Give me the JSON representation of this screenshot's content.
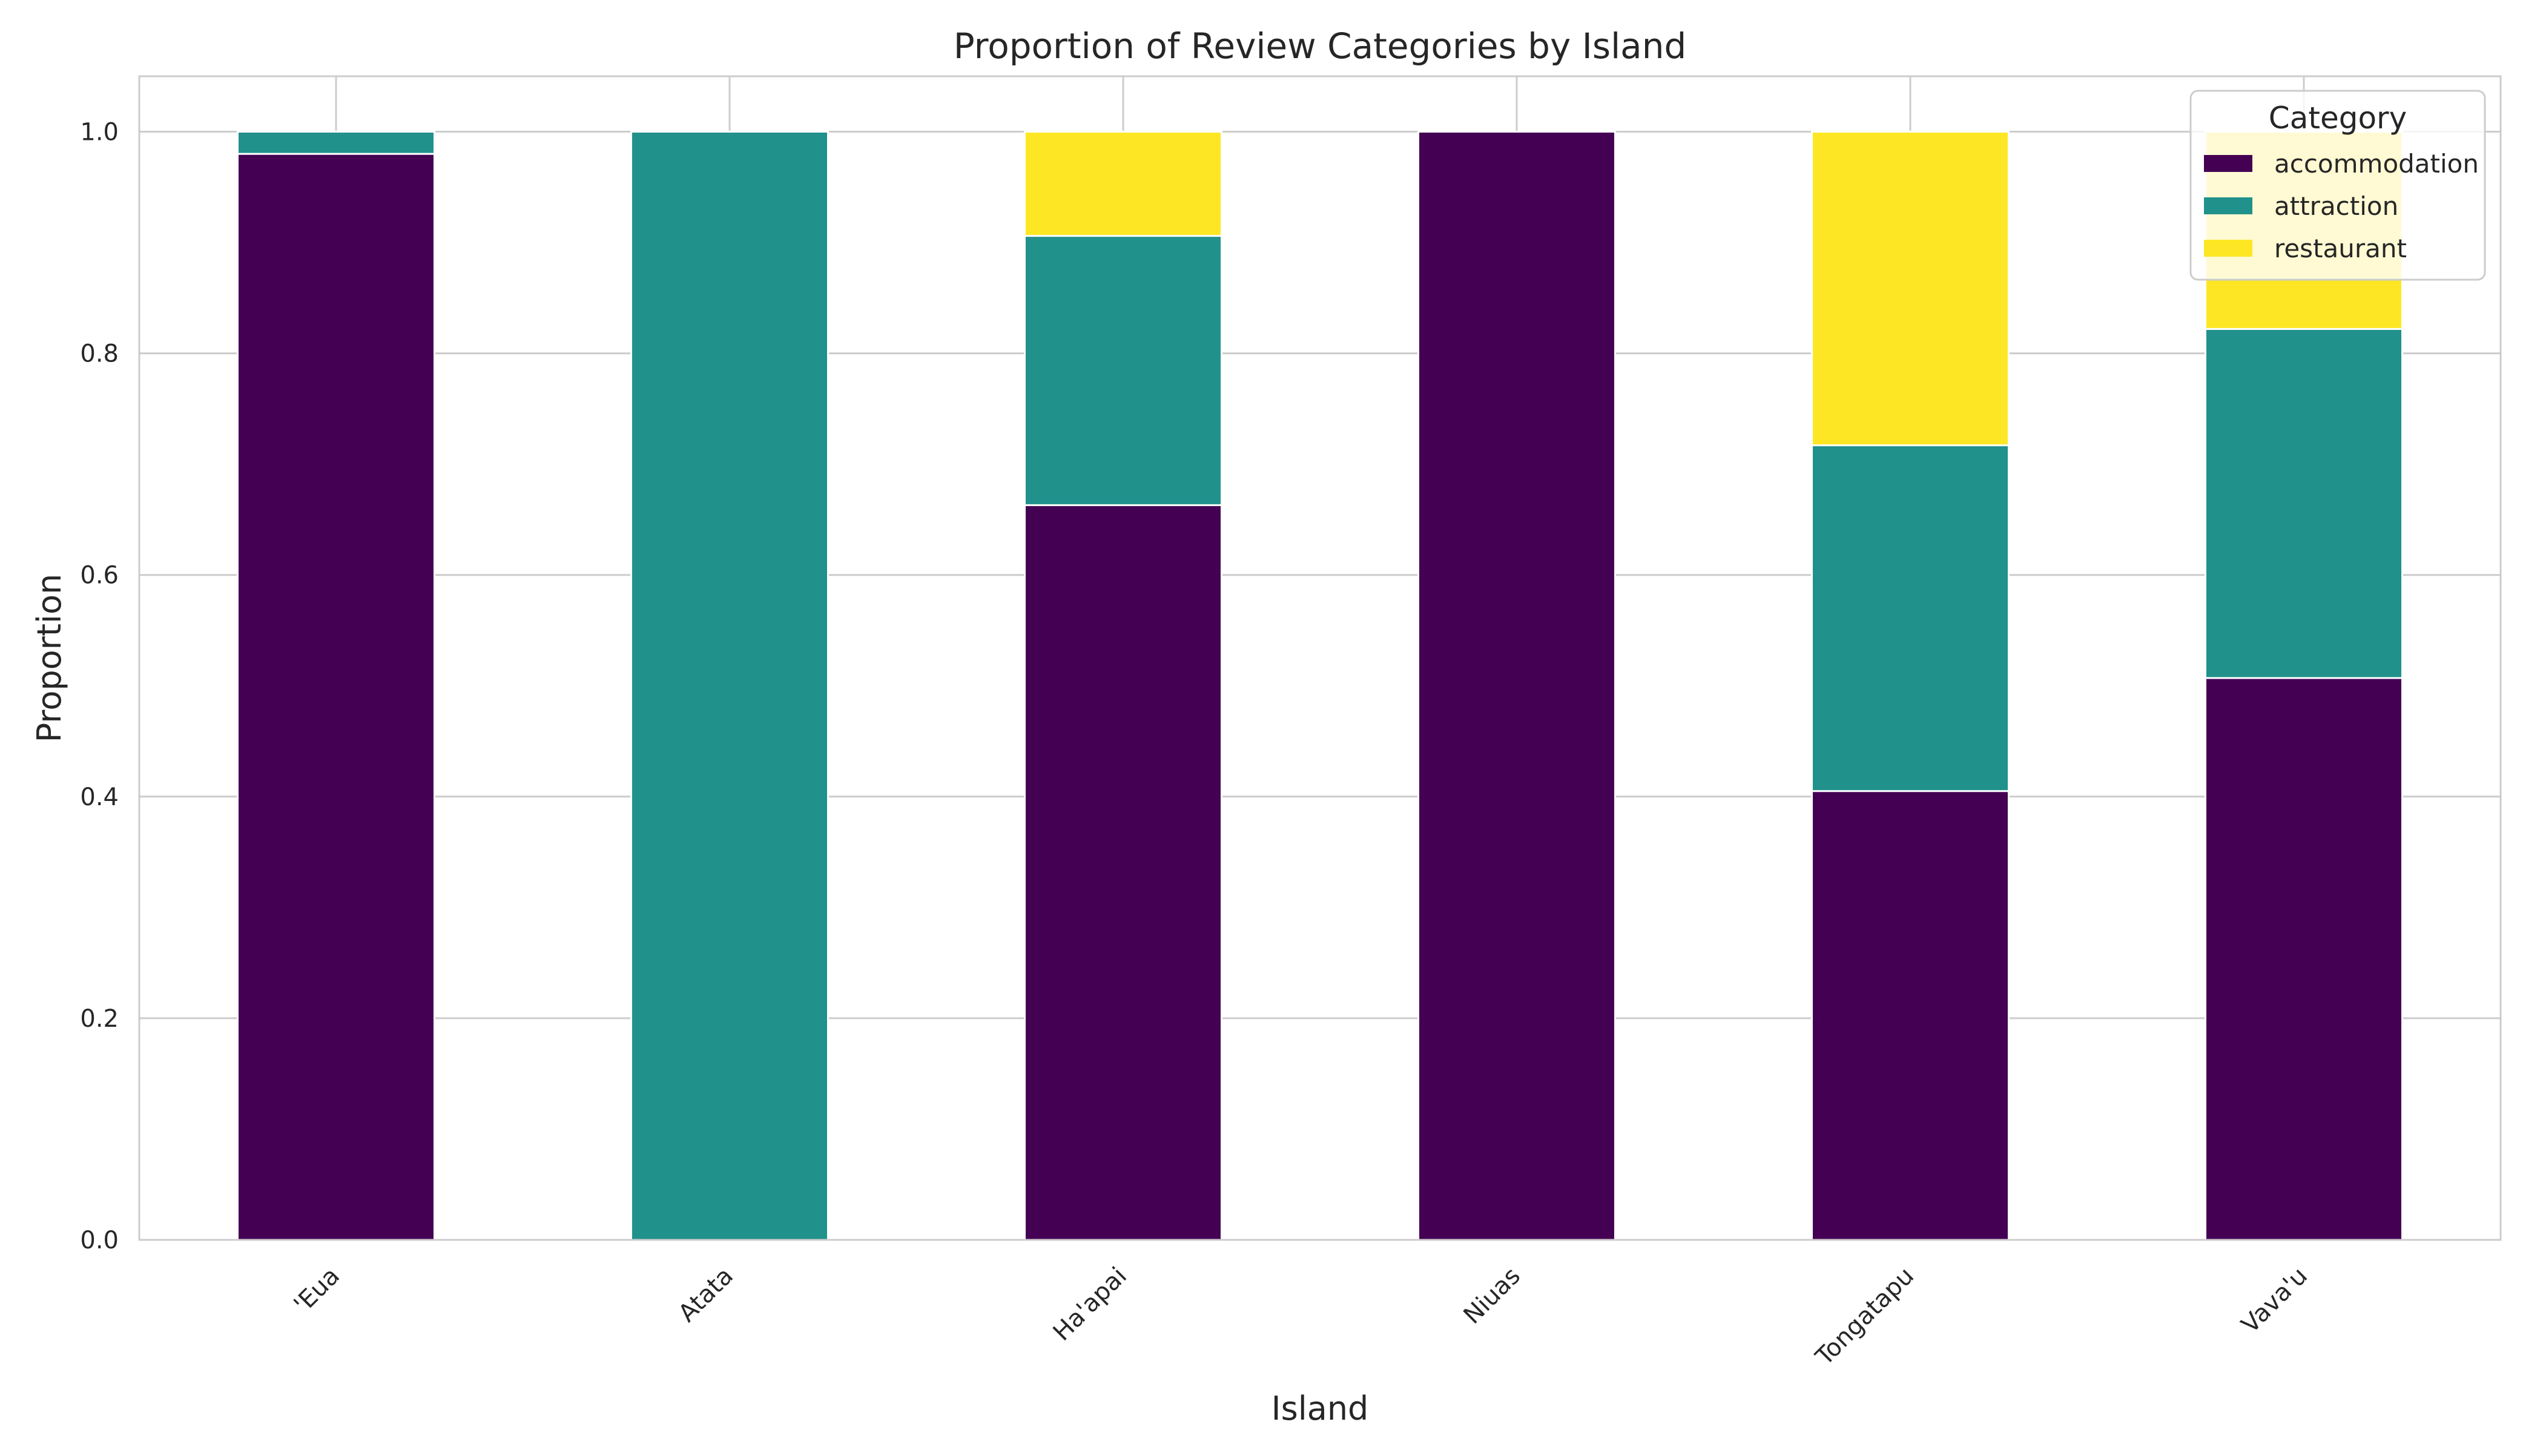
{
  "chart_data": {
    "type": "bar",
    "stacked": true,
    "title": "Proportion of Review Categories by Island",
    "xlabel": "Island",
    "ylabel": "Proportion",
    "categories": [
      "'Eua",
      "Atata",
      "Ha'apai",
      "Niuas",
      "Tongatapu",
      "Vava'u"
    ],
    "series": [
      {
        "name": "accommodation",
        "color": "#440154",
        "values": [
          0.98,
          0.0,
          0.663,
          1.0,
          0.405,
          0.507
        ]
      },
      {
        "name": "attraction",
        "color": "#21918c",
        "values": [
          0.02,
          1.0,
          0.243,
          0.0,
          0.312,
          0.315
        ]
      },
      {
        "name": "restaurant",
        "color": "#fde725",
        "values": [
          0.0,
          0.0,
          0.094,
          0.0,
          0.283,
          0.178
        ]
      }
    ],
    "ylim": [
      0,
      1.05
    ],
    "yticks": [
      "0.0",
      "0.2",
      "0.4",
      "0.6",
      "0.8",
      "1.0"
    ],
    "ytick_values": [
      0,
      0.2,
      0.4,
      0.6,
      0.8,
      1.0
    ],
    "grid": true,
    "legend": {
      "title": "Category",
      "placement": "top-right"
    }
  }
}
